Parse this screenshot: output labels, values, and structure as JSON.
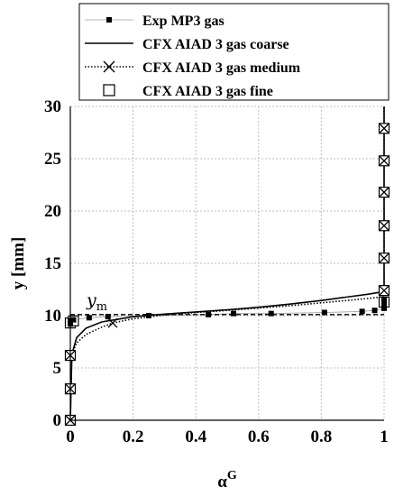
{
  "chart_data": {
    "type": "line",
    "xlabel": "α",
    "xlabel_sup": "G",
    "ylabel": "y [mm]",
    "xlim": [
      0,
      1
    ],
    "ylim": [
      0,
      30
    ],
    "xticks": [
      "0",
      "0.2",
      "0.4",
      "0.6",
      "0.8",
      "1"
    ],
    "yticks": [
      "0",
      "5",
      "10",
      "15",
      "20",
      "25",
      "30"
    ],
    "grid": true,
    "legend_position": "top",
    "annotation": {
      "label": "y",
      "subscript": "m",
      "y": 10.1
    },
    "series": [
      {
        "name": "Exp MP3 gas",
        "marker": "square-filled",
        "line": "thin-gray",
        "x": [
          0.0,
          0.0,
          0.01,
          0.06,
          0.12,
          0.25,
          0.44,
          0.52,
          0.64,
          0.81,
          0.93,
          0.97,
          1.0,
          1.0,
          1.0
        ],
        "y": [
          9.2,
          9.5,
          9.6,
          9.8,
          9.9,
          10.0,
          10.1,
          10.2,
          10.2,
          10.3,
          10.4,
          10.5,
          10.7,
          11.0,
          11.5
        ]
      },
      {
        "name": "CFX AIAD 3 gas coarse",
        "line": "solid",
        "x": [
          0.0,
          0.005,
          0.02,
          0.05,
          0.1,
          0.2,
          0.3,
          0.4,
          0.5,
          0.6,
          0.7,
          0.8,
          0.9,
          0.95,
          1.0,
          1.0,
          1.0
        ],
        "y": [
          0.0,
          6.3,
          7.9,
          8.8,
          9.4,
          9.9,
          10.15,
          10.35,
          10.55,
          10.8,
          11.1,
          11.45,
          11.85,
          12.05,
          12.3,
          20.0,
          30.0
        ]
      },
      {
        "name": "CFX AIAD 3 gas medium",
        "marker": "x",
        "line": "dotted",
        "x": [
          0.0,
          0.005,
          0.02,
          0.05,
          0.1,
          0.135,
          0.2,
          0.3,
          0.4,
          0.5,
          0.7,
          0.9,
          1.0,
          1.0,
          1.0
        ],
        "y": [
          0.0,
          6.3,
          7.4,
          8.2,
          8.9,
          9.3,
          9.7,
          10.05,
          10.3,
          10.5,
          10.95,
          11.5,
          11.8,
          20.0,
          30.0
        ]
      },
      {
        "name": "CFX AIAD 3 gas fine",
        "marker": "square-open",
        "line": "none",
        "x": [
          0,
          0,
          0,
          0,
          0.01,
          1,
          1,
          1,
          1,
          1,
          1,
          1
        ],
        "y": [
          0.0,
          3.0,
          6.2,
          9.3,
          9.5,
          12.4,
          15.5,
          18.6,
          21.8,
          24.8,
          27.9,
          11.3
        ]
      }
    ],
    "x_markers_medium": {
      "x": [
        0,
        0,
        0,
        0.135,
        1,
        1,
        1,
        1,
        1,
        1
      ],
      "y": [
        0.0,
        3.0,
        6.2,
        9.3,
        12.4,
        15.5,
        18.6,
        21.8,
        24.8,
        27.9
      ]
    }
  }
}
